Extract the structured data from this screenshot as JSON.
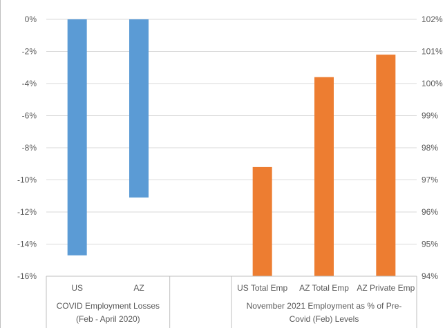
{
  "chart_data": {
    "type": "bar",
    "left_axis": {
      "min": -16,
      "max": 0,
      "step": 2,
      "tick_labels": [
        "0%",
        "-2%",
        "-4%",
        "-6%",
        "-8%",
        "-10%",
        "-12%",
        "-14%",
        "-16%"
      ]
    },
    "right_axis": {
      "min": 94,
      "max": 102,
      "step": 1,
      "tick_labels": [
        "102%",
        "101%",
        "100%",
        "99%",
        "98%",
        "97%",
        "96%",
        "95%",
        "94%"
      ]
    },
    "grid": true,
    "categories": [
      "US",
      "AZ",
      "",
      "US Total Emp",
      "AZ Total Emp",
      "AZ Private Emp"
    ],
    "groups": [
      {
        "label": "COVID Employment Losses (Feb - April 2020)",
        "label_lines": [
          "COVID Employment Losses",
          "(Feb - April 2020)"
        ],
        "span": [
          0,
          2
        ]
      },
      {
        "label": "",
        "label_lines": [],
        "span": [
          2,
          3
        ]
      },
      {
        "label": "November 2021 Employment as % of Pre-Covid (Feb) Levels",
        "label_lines": [
          "November 2021 Employment as % of Pre-",
          "Covid (Feb) Levels"
        ],
        "span": [
          3,
          6
        ]
      }
    ],
    "series": [
      {
        "axis": "left",
        "color": "#5b9bd5",
        "values": [
          -14.7,
          -11.1,
          null,
          null,
          null,
          null
        ]
      },
      {
        "axis": "right",
        "color": "#ed7d31",
        "values": [
          null,
          null,
          null,
          97.4,
          100.2,
          100.9
        ]
      }
    ]
  }
}
